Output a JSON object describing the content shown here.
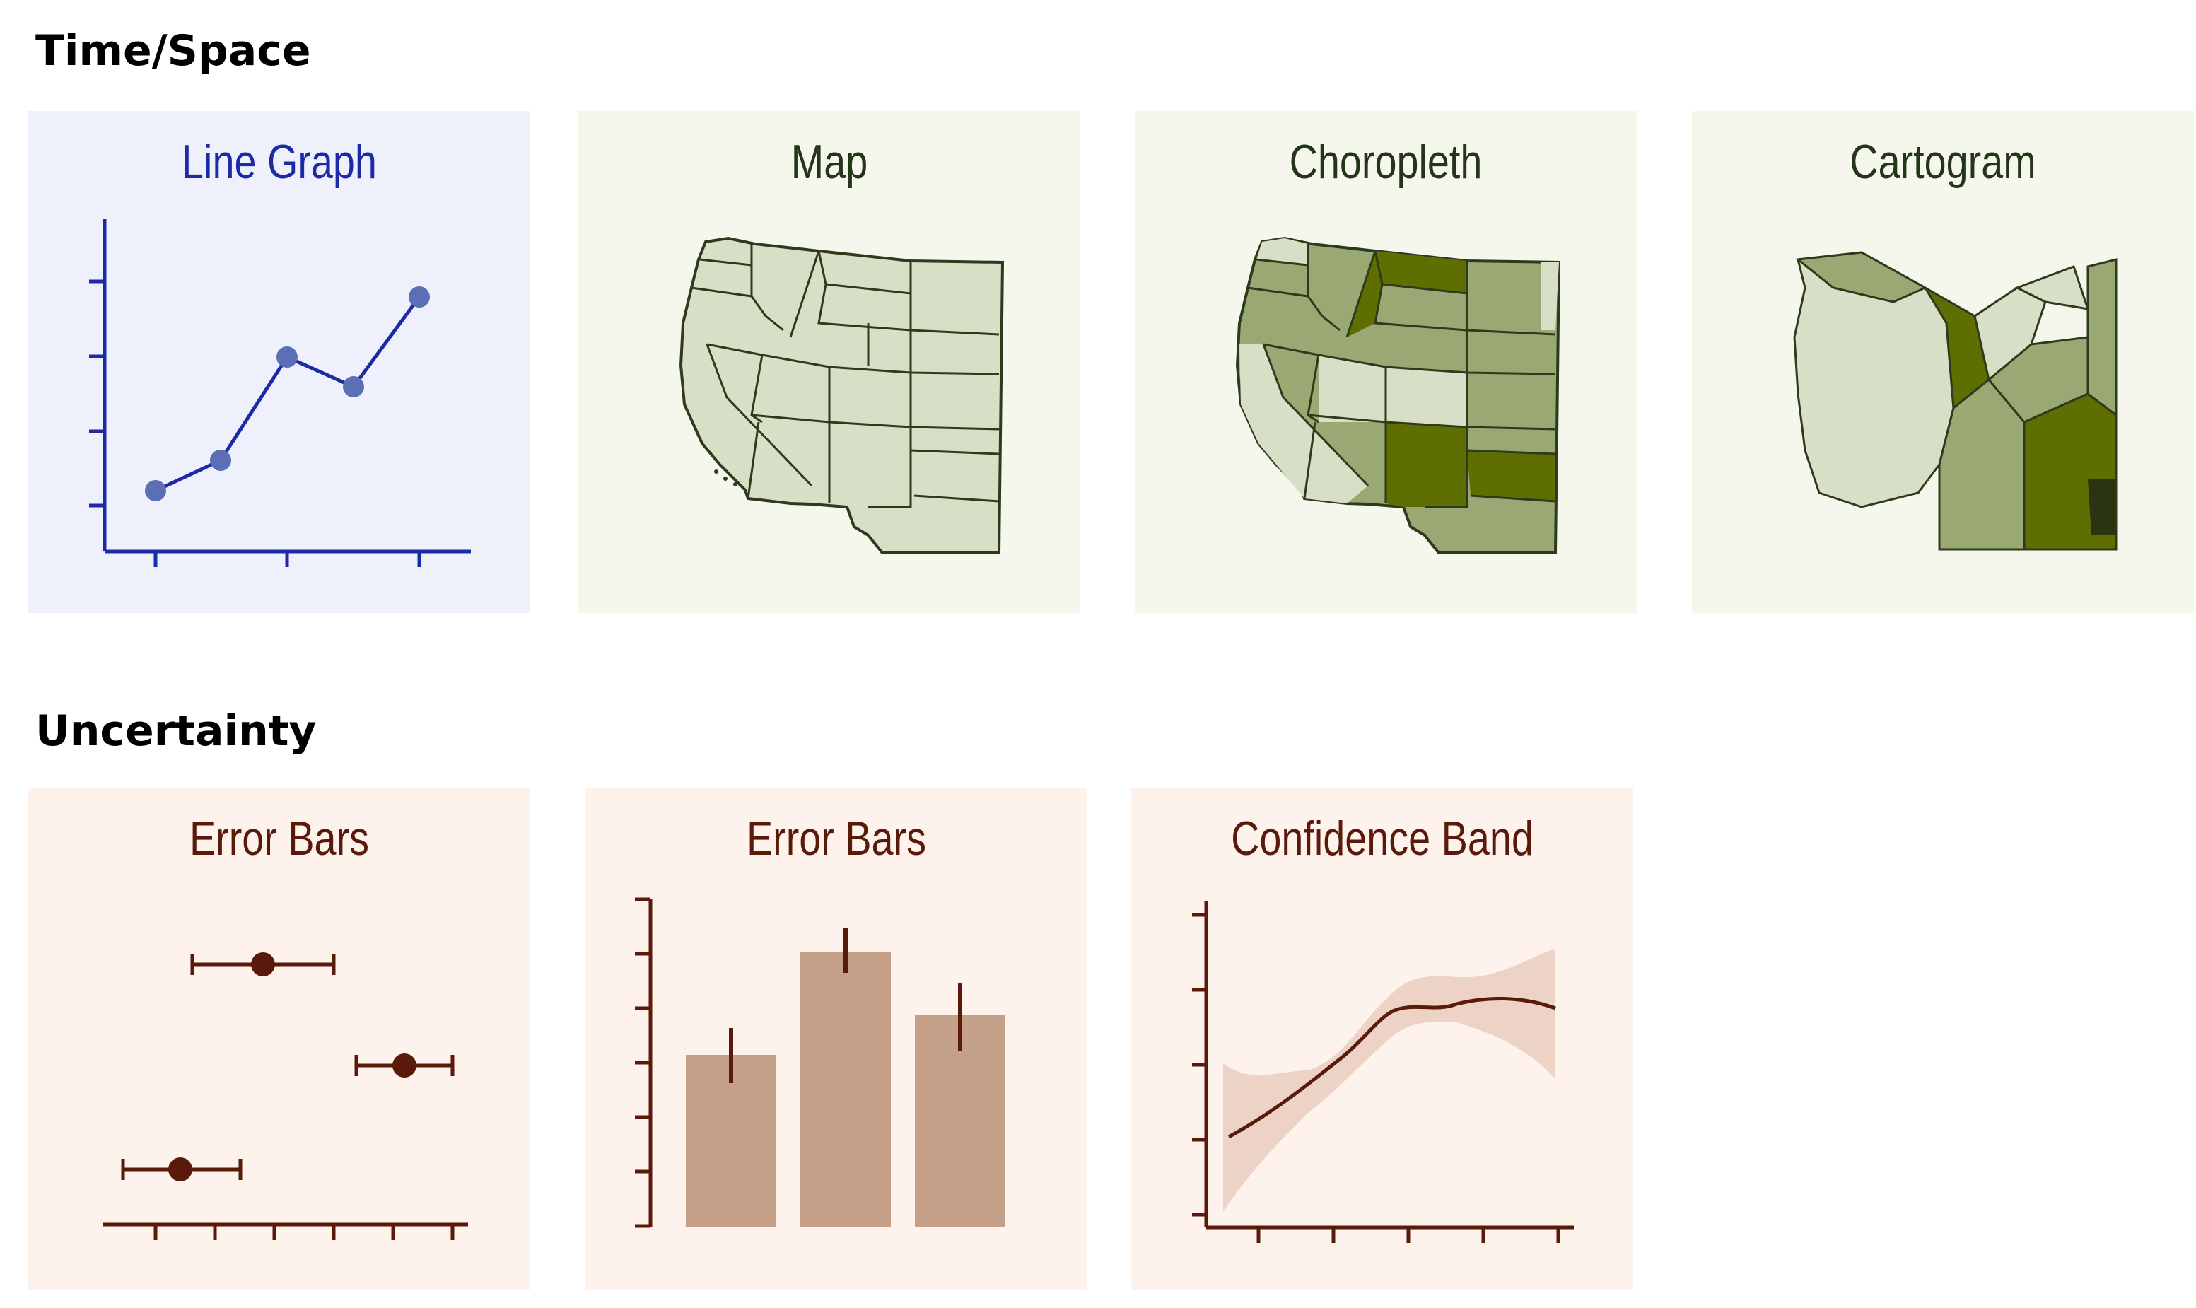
{
  "sections": {
    "time_space": "Time/Space",
    "uncertainty": "Uncertainty"
  },
  "cards": {
    "line_graph": "Line Graph",
    "map": "Map",
    "choropleth": "Choropleth",
    "cartogram": "Cartogram",
    "error_bars_points": "Error Bars",
    "error_bars_bars": "Error Bars",
    "confidence_band": "Confidence Band"
  },
  "colors": {
    "line_blue": "#1c2aa6",
    "point_blue": "#5a6fb4",
    "map_fill": "#d8dfc7",
    "map_mid": "#9aa873",
    "map_dark": "#5f6e00",
    "map_stroke": "#2d3a1c",
    "uncertainty_dark": "#5a1a0a",
    "bar_fill": "#c4a089",
    "band_fill": "#edd2c6"
  }
}
